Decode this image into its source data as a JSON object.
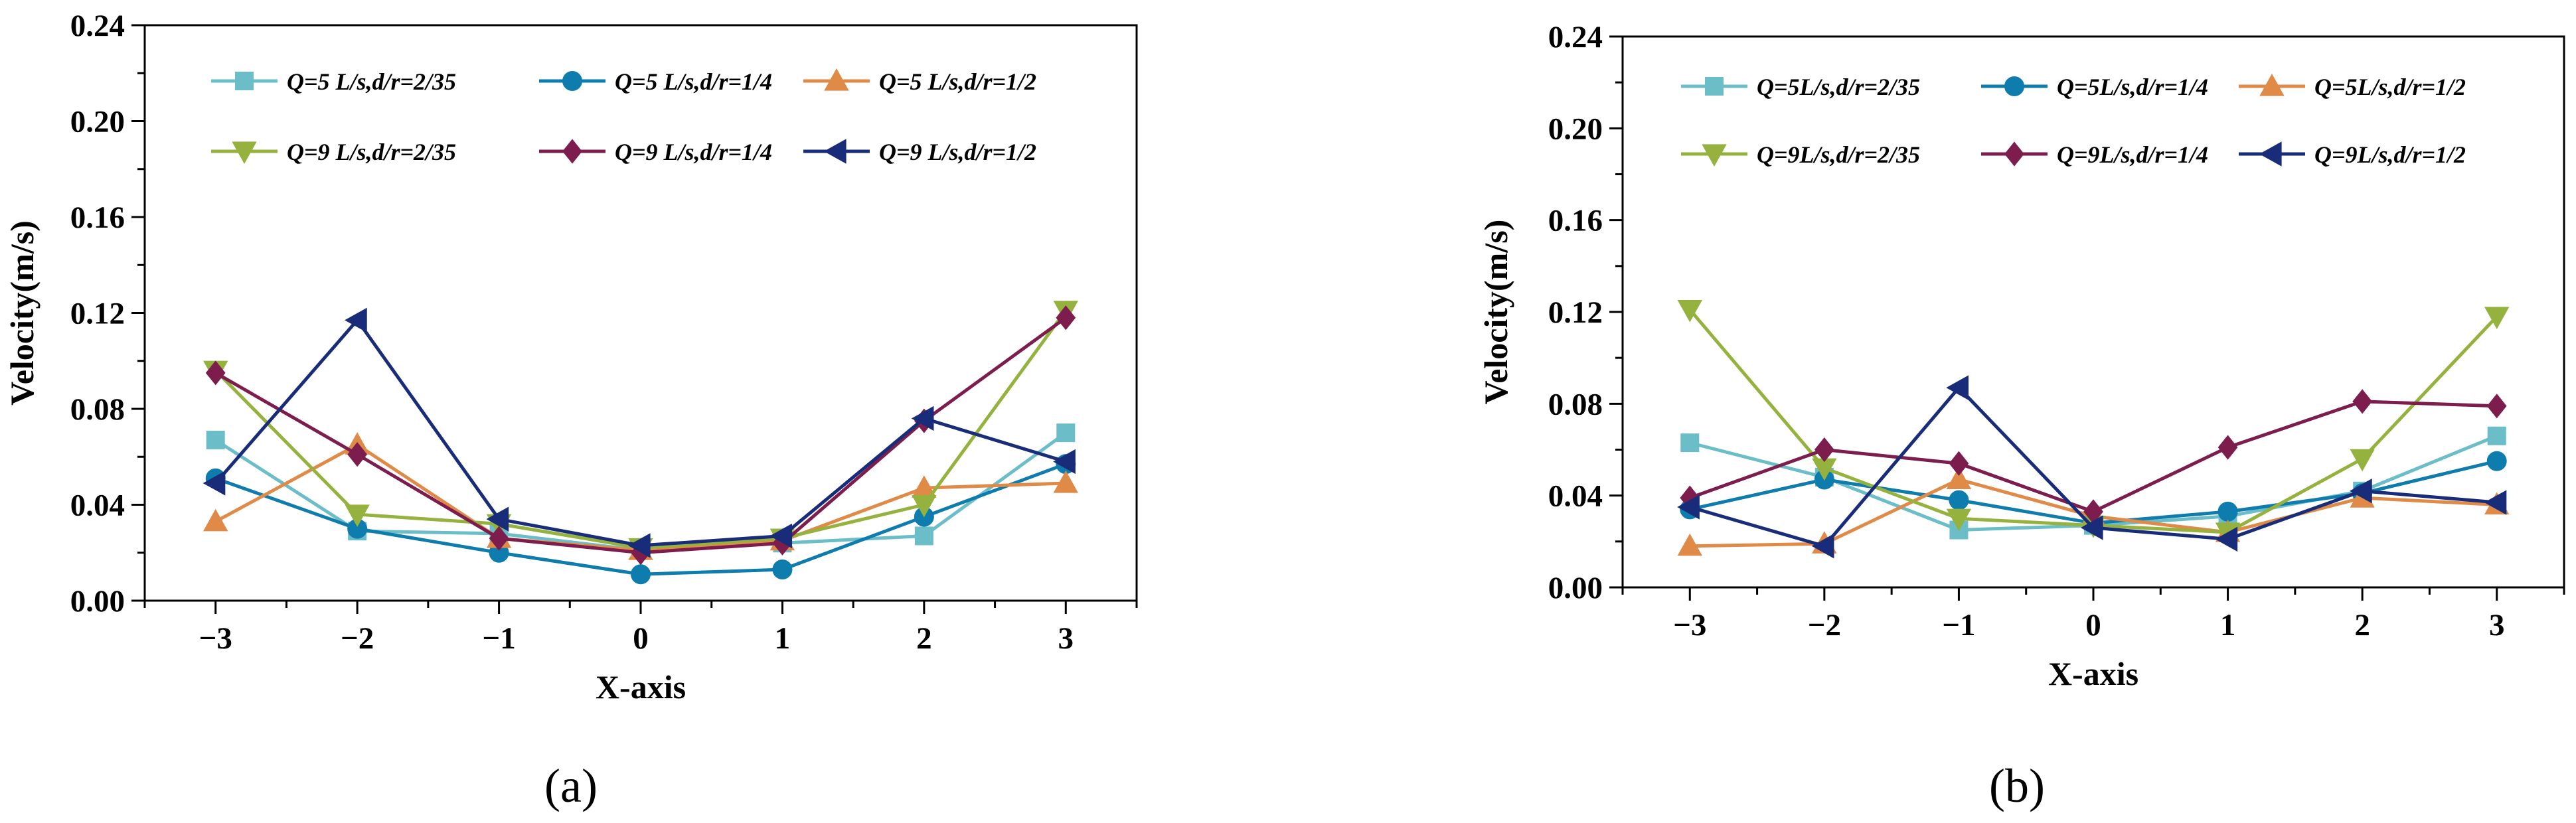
{
  "figure": {
    "panel_labels": [
      "(a)",
      "(b)"
    ]
  },
  "chart_data": [
    {
      "type": "line",
      "panel": "(a)",
      "title": "",
      "xlabel": "X-axis",
      "ylabel": "Velocity(m/s)",
      "x": [
        -3,
        -2,
        -1,
        0,
        1,
        2,
        3
      ],
      "x_tick_labels": [
        "−3",
        "−2",
        "−1",
        "0",
        "1",
        "2",
        "3"
      ],
      "xlim": [
        -3.5,
        3.5
      ],
      "ylim": [
        0,
        0.24
      ],
      "y_ticks": [
        0,
        0.04,
        0.08,
        0.12,
        0.16,
        0.2,
        0.24
      ],
      "y_tick_labels": [
        "0.00",
        "0.04",
        "0.08",
        "0.12",
        "0.16",
        "0.20",
        "0.24"
      ],
      "grid": false,
      "legend_position": "top",
      "series": [
        {
          "name": "Q=5 L/s,d/r=2/35",
          "color": "#6bbdc8",
          "marker": "square",
          "values": [
            0.067,
            0.029,
            0.028,
            0.021,
            0.024,
            0.027,
            0.07
          ]
        },
        {
          "name": "Q=5 L/s,d/r=1/4",
          "color": "#0f7cae",
          "marker": "circle",
          "values": [
            0.051,
            0.03,
            0.02,
            0.011,
            0.013,
            0.035,
            0.057
          ]
        },
        {
          "name": "Q=5 L/s,d/r=1/2",
          "color": "#e08a48",
          "marker": "triangle-up",
          "values": [
            0.033,
            0.065,
            0.026,
            0.021,
            0.025,
            0.047,
            0.049
          ]
        },
        {
          "name": "Q=9 L/s,d/r=2/35",
          "color": "#94b23d",
          "marker": "triangle-down",
          "values": [
            0.096,
            0.036,
            0.032,
            0.022,
            0.026,
            0.04,
            0.121
          ]
        },
        {
          "name": "Q=9 L/s,d/r=1/4",
          "color": "#7c1d4e",
          "marker": "diamond",
          "values": [
            0.095,
            0.061,
            0.026,
            0.02,
            0.024,
            0.075,
            0.118
          ]
        },
        {
          "name": "Q=9 L/s,d/r=1/2",
          "color": "#182c7a",
          "marker": "triangle-left",
          "values": [
            0.049,
            0.117,
            0.034,
            0.023,
            0.027,
            0.076,
            0.058
          ]
        }
      ]
    },
    {
      "type": "line",
      "panel": "(b)",
      "title": "",
      "xlabel": "X-axis",
      "ylabel": "Velocity(m/s)",
      "x": [
        -3,
        -2,
        -1,
        0,
        1,
        2,
        3
      ],
      "x_tick_labels": [
        "−3",
        "−2",
        "−1",
        "0",
        "1",
        "2",
        "3"
      ],
      "xlim": [
        -3.5,
        3.5
      ],
      "ylim": [
        0,
        0.24
      ],
      "y_ticks": [
        0,
        0.04,
        0.08,
        0.12,
        0.16,
        0.2,
        0.24
      ],
      "y_tick_labels": [
        "0.00",
        "0.04",
        "0.08",
        "0.12",
        "0.16",
        "0.20",
        "0.24"
      ],
      "grid": false,
      "legend_position": "top",
      "series": [
        {
          "name": "Q=5L/s,d/r=2/35",
          "color": "#6bbdc8",
          "marker": "square",
          "values": [
            0.063,
            0.048,
            0.025,
            0.027,
            0.031,
            0.042,
            0.066
          ]
        },
        {
          "name": "Q=5L/s,d/r=1/4",
          "color": "#0f7cae",
          "marker": "circle",
          "values": [
            0.034,
            0.047,
            0.038,
            0.028,
            0.033,
            0.041,
            0.055
          ]
        },
        {
          "name": "Q=5L/s,d/r=1/2",
          "color": "#e08a48",
          "marker": "triangle-up",
          "values": [
            0.018,
            0.019,
            0.047,
            0.031,
            0.024,
            0.039,
            0.036
          ]
        },
        {
          "name": "Q=9L/s,d/r=2/35",
          "color": "#94b23d",
          "marker": "triangle-down",
          "values": [
            0.121,
            0.052,
            0.03,
            0.027,
            0.024,
            0.056,
            0.118
          ]
        },
        {
          "name": "Q=9L/s,d/r=1/4",
          "color": "#7c1d4e",
          "marker": "diamond",
          "values": [
            0.039,
            0.06,
            0.054,
            0.033,
            0.061,
            0.081,
            0.079
          ]
        },
        {
          "name": "Q=9L/s,d/r=1/2",
          "color": "#182c7a",
          "marker": "triangle-left",
          "values": [
            0.035,
            0.018,
            0.087,
            0.026,
            0.021,
            0.042,
            0.037
          ]
        }
      ]
    }
  ]
}
